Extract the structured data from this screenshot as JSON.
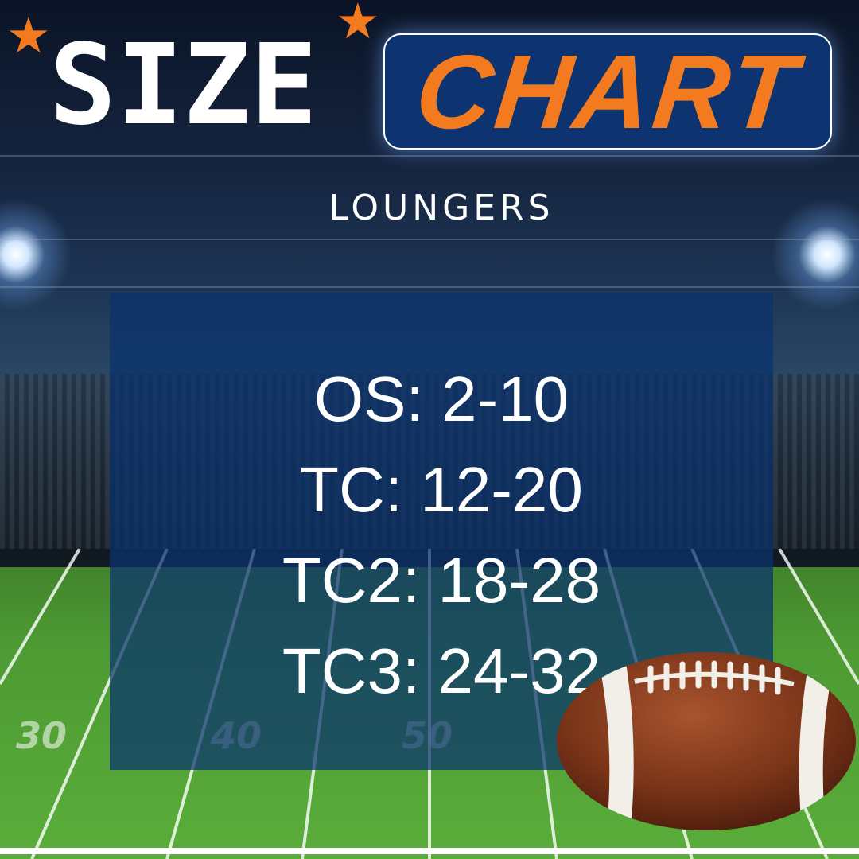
{
  "title": {
    "left": "SIZE",
    "right": "CHART"
  },
  "subtitle": "LOUNGERS",
  "sizes": [
    {
      "label": "OS: 2-10"
    },
    {
      "label": "TC: 12-20"
    },
    {
      "label": "TC2: 18-28"
    },
    {
      "label": "TC3: 24-32"
    }
  ],
  "field_numbers": [
    "30",
    "40",
    "50"
  ],
  "colors": {
    "accent": "#f47a20",
    "panel": "#0d3470",
    "text": "#ffffff"
  },
  "icons": [
    "star-icon",
    "football-icon",
    "stadium-light-icon"
  ]
}
